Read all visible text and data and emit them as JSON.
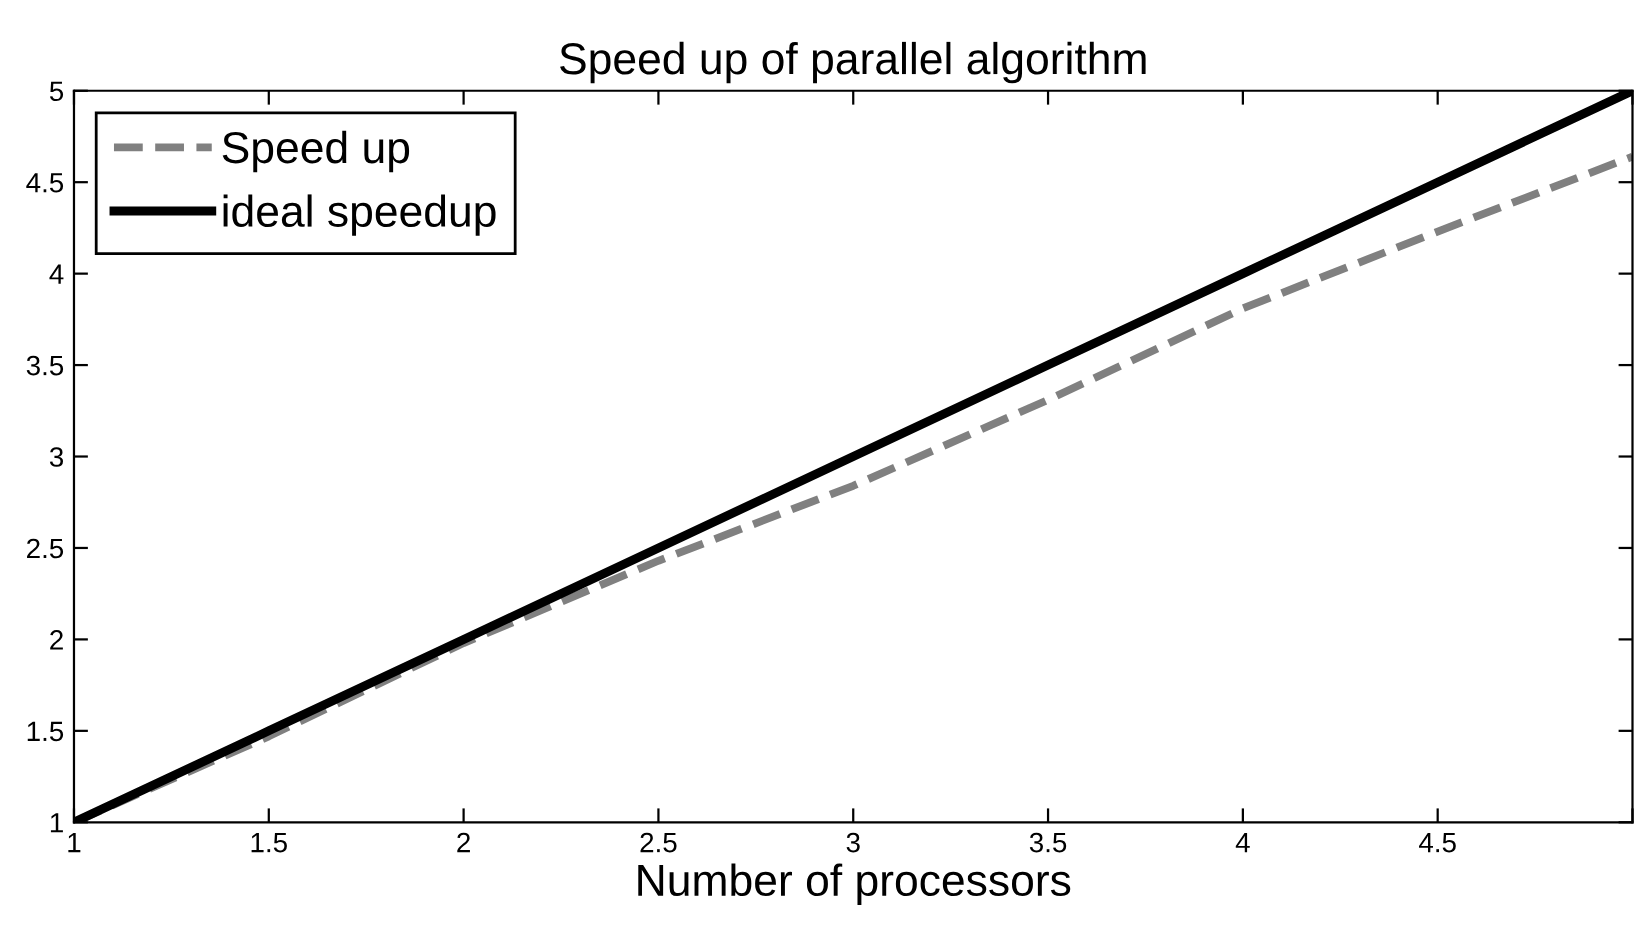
{
  "chart_data": {
    "type": "line",
    "title": "Speed up of parallel algorithm",
    "xlabel": "Number of processors",
    "x": [
      1,
      1.5,
      2,
      2.5,
      3,
      3.5,
      4,
      4.5,
      5
    ],
    "series": [
      {
        "name": "Speed up",
        "color": "#808080",
        "line_style": "dashed",
        "values": [
          1,
          1.47,
          1.98,
          2.43,
          2.84,
          3.31,
          3.81,
          4.23,
          4.64
        ]
      },
      {
        "name": "ideal speedup",
        "color": "#000000",
        "line_style": "solid",
        "values": [
          1,
          1.5,
          2,
          2.5,
          3,
          3.5,
          4,
          4.5,
          5
        ]
      }
    ],
    "xlim": [
      1,
      5
    ],
    "ylim": [
      1,
      5
    ],
    "xticks": [
      1,
      1.5,
      2,
      2.5,
      3,
      3.5,
      4,
      4.5,
      {
        "value": 5,
        "label": null
      }
    ],
    "yticks": [
      1,
      1.5,
      2,
      2.5,
      3,
      3.5,
      4,
      4.5,
      5
    ],
    "grid": false,
    "legend": "top left",
    "marker": "none"
  }
}
